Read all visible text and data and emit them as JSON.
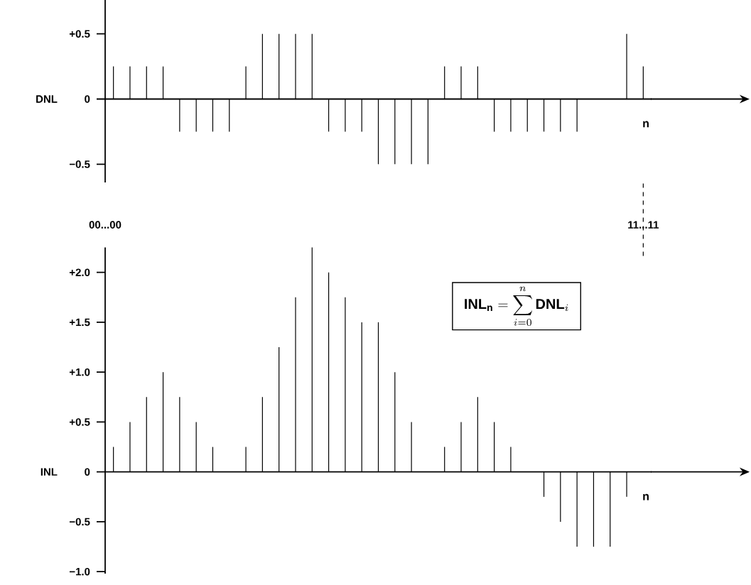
{
  "chart_data": [
    {
      "type": "bar",
      "ylabel": "DNL",
      "xlabel": "n",
      "tick_labels": "y",
      "color": "#000000",
      "categories": [
        null,
        null,
        null,
        null,
        null,
        null,
        null,
        null,
        null,
        null,
        null,
        null,
        null,
        null,
        null,
        null,
        null,
        null,
        null,
        null,
        null,
        null,
        null,
        null,
        null,
        null,
        null,
        null,
        null,
        null,
        null,
        null,
        null
      ],
      "values": [
        0.25,
        0.25,
        0.25,
        0.25,
        -0.25,
        -0.25,
        -0.25,
        -0.25,
        0.25,
        0.5,
        0.5,
        0.5,
        0.5,
        -0.25,
        -0.25,
        -0.25,
        -0.5,
        -0.5,
        -0.5,
        -0.5,
        0.25,
        0.25,
        0.25,
        -0.25,
        -0.25,
        -0.25,
        -0.25,
        -0.25,
        -0.25,
        null,
        null,
        0.5,
        0.25
      ],
      "ylim": [
        -0.64,
        0.76
      ],
      "yticks": [
        {
          "value": 0.5,
          "label": "+0.5"
        },
        {
          "value": 0,
          "label": "0"
        },
        {
          "value": -0.5,
          "label": "−0.5"
        }
      ]
    },
    {
      "type": "bar",
      "ylabel": "INL",
      "xlabel": "n",
      "tick_labels": "y",
      "color": "#000000",
      "categories": [
        null,
        null,
        null,
        null,
        null,
        null,
        null,
        null,
        null,
        null,
        null,
        null,
        null,
        null,
        null,
        null,
        null,
        null,
        null,
        null,
        null,
        null,
        null,
        null,
        null,
        null,
        null,
        null,
        null,
        null,
        null,
        null,
        null
      ],
      "values": [
        0.25,
        0.5,
        0.75,
        1.0,
        0.75,
        0.5,
        0.25,
        null,
        0.25,
        0.75,
        1.25,
        1.75,
        2.25,
        2.0,
        1.75,
        1.5,
        1.5,
        1.0,
        0.5,
        null,
        0.25,
        0.5,
        0.75,
        0.5,
        0.25,
        null,
        -0.25,
        -0.5,
        -0.75,
        -0.75,
        -0.75,
        -0.25,
        null
      ],
      "ylim": [
        -1.02,
        2.25
      ],
      "yticks": [
        {
          "value": -1.0,
          "label": "−1.0"
        },
        {
          "value": -0.5,
          "label": "−0.5"
        },
        {
          "value": 0,
          "label": "0"
        },
        {
          "value": 0.5,
          "label": "+0.5"
        },
        {
          "value": 1.0,
          "label": "+1.0"
        },
        {
          "value": 1.5,
          "label": "+1.5"
        },
        {
          "value": 2.0,
          "label": "+2.0"
        }
      ],
      "annotations": [
        "00...00",
        "11...11",
        {
          "text": "\\mathbf{INL}_{\\mathbf{n}}=\\sum_{i=0}^{n}\\mathbf{DNL}_{i}"
        }
      ]
    }
  ]
}
